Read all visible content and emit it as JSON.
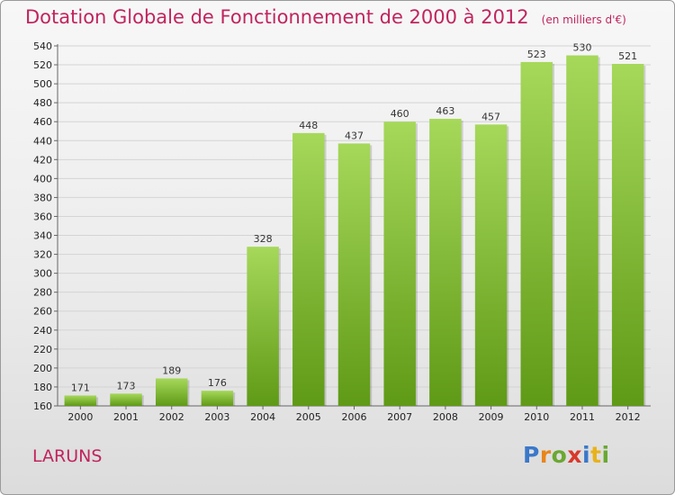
{
  "title": "Dotation Globale de Fonctionnement de 2000 à 2012",
  "subtitle": "(en milliers d'€)",
  "place": "LARUNS",
  "logo": {
    "text": "Proxiti",
    "letters": [
      {
        "ch": "P",
        "color": "#3a78c9"
      },
      {
        "ch": "r",
        "color": "#e8851a"
      },
      {
        "ch": "o",
        "color": "#6aa832"
      },
      {
        "ch": "x",
        "color": "#d8392b"
      },
      {
        "ch": "i",
        "color": "#3a78c9"
      },
      {
        "ch": "t",
        "color": "#e8b21a"
      },
      {
        "ch": "i",
        "color": "#6aa832"
      }
    ]
  },
  "chart_data": {
    "type": "bar",
    "title": "Dotation Globale de Fonctionnement de 2000 à 2012",
    "subtitle": "(en milliers d'€)",
    "categories": [
      "2000",
      "2001",
      "2002",
      "2003",
      "2004",
      "2005",
      "2006",
      "2007",
      "2008",
      "2009",
      "2010",
      "2011",
      "2012"
    ],
    "values": [
      171,
      173,
      189,
      176,
      328,
      448,
      437,
      460,
      463,
      457,
      523,
      530,
      521
    ],
    "ylim": [
      160,
      540
    ],
    "ytick_step": 20,
    "grid": true,
    "bar_color_top": "#a6d85a",
    "bar_color_bottom": "#5f9a16"
  }
}
